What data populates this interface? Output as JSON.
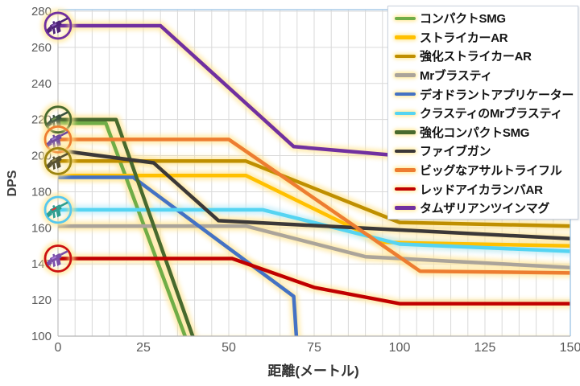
{
  "chart_data": {
    "type": "line",
    "title": "",
    "xlabel": "距離(メートル)",
    "ylabel": "DPS",
    "xlim": [
      0,
      150
    ],
    "ylim": [
      100,
      280
    ],
    "x_ticks": [
      0,
      25,
      50,
      75,
      100,
      125,
      150
    ],
    "y_ticks": [
      100,
      120,
      140,
      160,
      180,
      200,
      220,
      240,
      260,
      280
    ],
    "grid": true,
    "grid_minor_x_step_m": 5,
    "legend_position": "top-right",
    "colors": {
      "gridline": "#d9d9d9",
      "plot_border_blue": "#a8cce8",
      "axis_line": "#b3b3b3",
      "tick_text": "#595959",
      "line_glow": "#ffe699",
      "cyan_glow": "#bfecfa"
    },
    "series": [
      {
        "name": "コンパクトSMG",
        "color": "#70ad47",
        "points": [
          [
            0,
            218
          ],
          [
            14,
            218
          ],
          [
            38,
            96
          ],
          [
            150,
            96
          ]
        ]
      },
      {
        "name": "ストライカーAR",
        "color": "#ffc000",
        "points": [
          [
            0,
            189
          ],
          [
            55,
            189
          ],
          [
            95,
            152
          ],
          [
            150,
            150
          ]
        ]
      },
      {
        "name": "強化ストライカーAR",
        "color": "#bf8f00",
        "points": [
          [
            0,
            197
          ],
          [
            55,
            197
          ],
          [
            100,
            163
          ],
          [
            150,
            161
          ]
        ]
      },
      {
        "name": "Mrブラスティ",
        "color": "#aba49a",
        "points": [
          [
            0,
            161
          ],
          [
            55,
            161
          ],
          [
            90,
            144
          ],
          [
            150,
            138
          ]
        ]
      },
      {
        "name": "デオドラントアプリケーター",
        "color": "#4472c4",
        "points": [
          [
            0,
            188
          ],
          [
            22,
            188
          ],
          [
            69,
            122
          ],
          [
            70,
            94
          ]
        ]
      },
      {
        "name": "クラスティのMrブラスティ",
        "color": "#55d4f2",
        "glow": "#bfecfa",
        "points": [
          [
            0,
            170
          ],
          [
            60,
            170
          ],
          [
            100,
            151
          ],
          [
            150,
            147
          ]
        ]
      },
      {
        "name": "強化コンパクトSMG",
        "color": "#486a2e",
        "points": [
          [
            0,
            220
          ],
          [
            17,
            220
          ],
          [
            40,
            97
          ],
          [
            150,
            97
          ]
        ]
      },
      {
        "name": "ファイブガン",
        "color": "#3b3838",
        "points": [
          [
            0,
            203
          ],
          [
            28,
            196
          ],
          [
            47,
            164
          ],
          [
            150,
            154
          ]
        ]
      },
      {
        "name": "ビッグなアサルトライフル",
        "color": "#ed7d31",
        "points": [
          [
            0,
            209
          ],
          [
            50,
            209
          ],
          [
            106,
            136
          ],
          [
            150,
            135
          ]
        ]
      },
      {
        "name": "レッドアイカランバAR",
        "color": "#c00000",
        "points": [
          [
            0,
            143
          ],
          [
            51,
            143
          ],
          [
            75,
            127
          ],
          [
            100,
            118
          ],
          [
            150,
            118
          ]
        ]
      },
      {
        "name": "タムザリアンツインマグ",
        "color": "#7030a0",
        "points": [
          [
            0,
            272
          ],
          [
            30,
            272
          ],
          [
            69,
            205
          ],
          [
            100,
            200
          ],
          [
            150,
            198
          ]
        ]
      }
    ],
    "start_icons": [
      {
        "series": "タムザリアンツインマグ",
        "dps": 272,
        "ring": "#7030a0",
        "gun": "#4e2378",
        "accent": "#8a5cb8"
      },
      {
        "series": "強化コンパクトSMG",
        "dps": 220,
        "ring": "#486a2e",
        "gun": "#39513f",
        "accent": "#6b8f53"
      },
      {
        "series": "ビッグなアサルトライフル",
        "dps": 209,
        "ring": "#ed7d31",
        "gun": "#6e4a9e",
        "accent": "#9878c8"
      },
      {
        "series": "強化ストライカーAR",
        "dps": 197,
        "ring": "#9c8410",
        "gun": "#57512f",
        "accent": "#8c8148"
      },
      {
        "series": "クラスティのMrブラスティ",
        "dps": 170,
        "ring": "#55c8ef",
        "gun": "#2e9e8f",
        "accent": "#d53a3a"
      },
      {
        "series": "レッドアイカランバAR",
        "dps": 143,
        "ring": "#cc1111",
        "gun": "#7b4fa8",
        "accent": "#a77bd4"
      }
    ]
  }
}
